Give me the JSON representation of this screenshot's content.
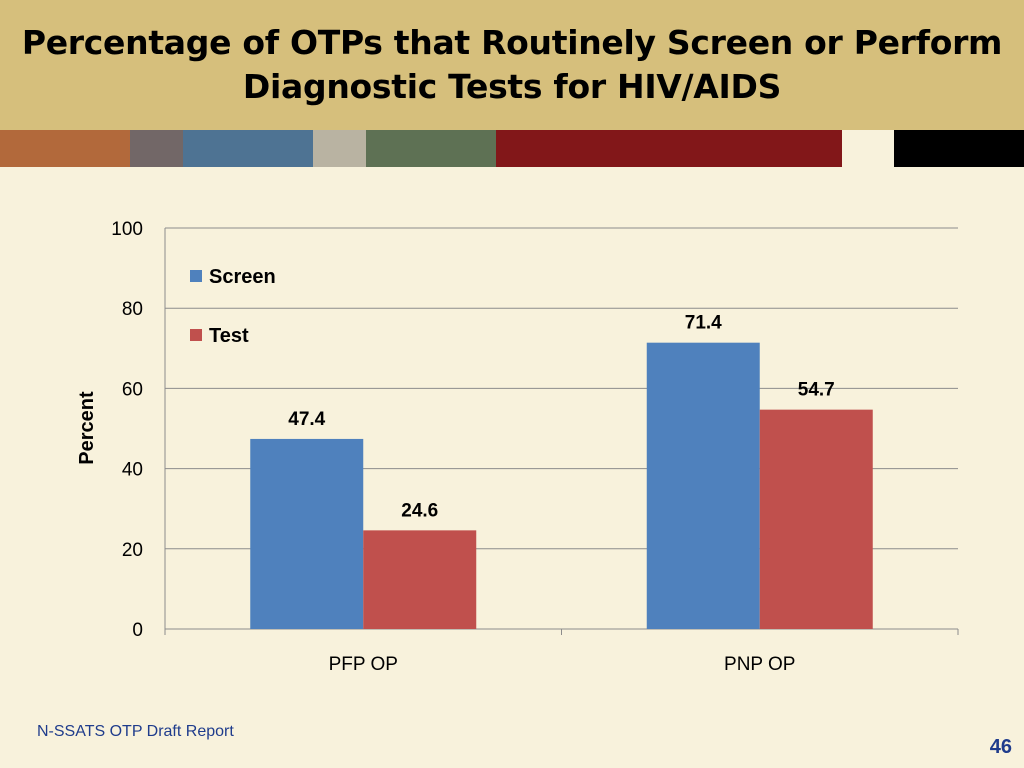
{
  "slide": {
    "title_line1": "Percentage of OTPs that Routinely Screen or Perform",
    "title_line2": "Diagnostic Tests for HIV/AIDS",
    "footer": "N-SSATS OTP Draft Report",
    "page_number": "46"
  },
  "colors": {
    "header_bg": "#d6bf7c",
    "background": "#f8f2dc",
    "stripe": [
      "#b2693b",
      "#726767",
      "#4e7393",
      "#b9b3a2",
      "#5e7154",
      "#821719",
      "#f8f2dc",
      "#000000"
    ],
    "screen": "#4f81bd",
    "test": "#c0504d"
  },
  "chart_data": {
    "type": "bar",
    "ylabel": "Percent",
    "ylim": [
      0,
      100
    ],
    "yticks": [
      0,
      20,
      40,
      60,
      80,
      100
    ],
    "grid": true,
    "legend_position": "top-left",
    "categories": [
      "PFP OP",
      "PNP OP"
    ],
    "series": [
      {
        "name": "Screen",
        "values": [
          47.4,
          71.4
        ],
        "labels": [
          "47.4",
          "71.4"
        ]
      },
      {
        "name": "Test",
        "values": [
          24.6,
          54.7
        ],
        "labels": [
          "24.6",
          "54.7"
        ]
      }
    ]
  }
}
